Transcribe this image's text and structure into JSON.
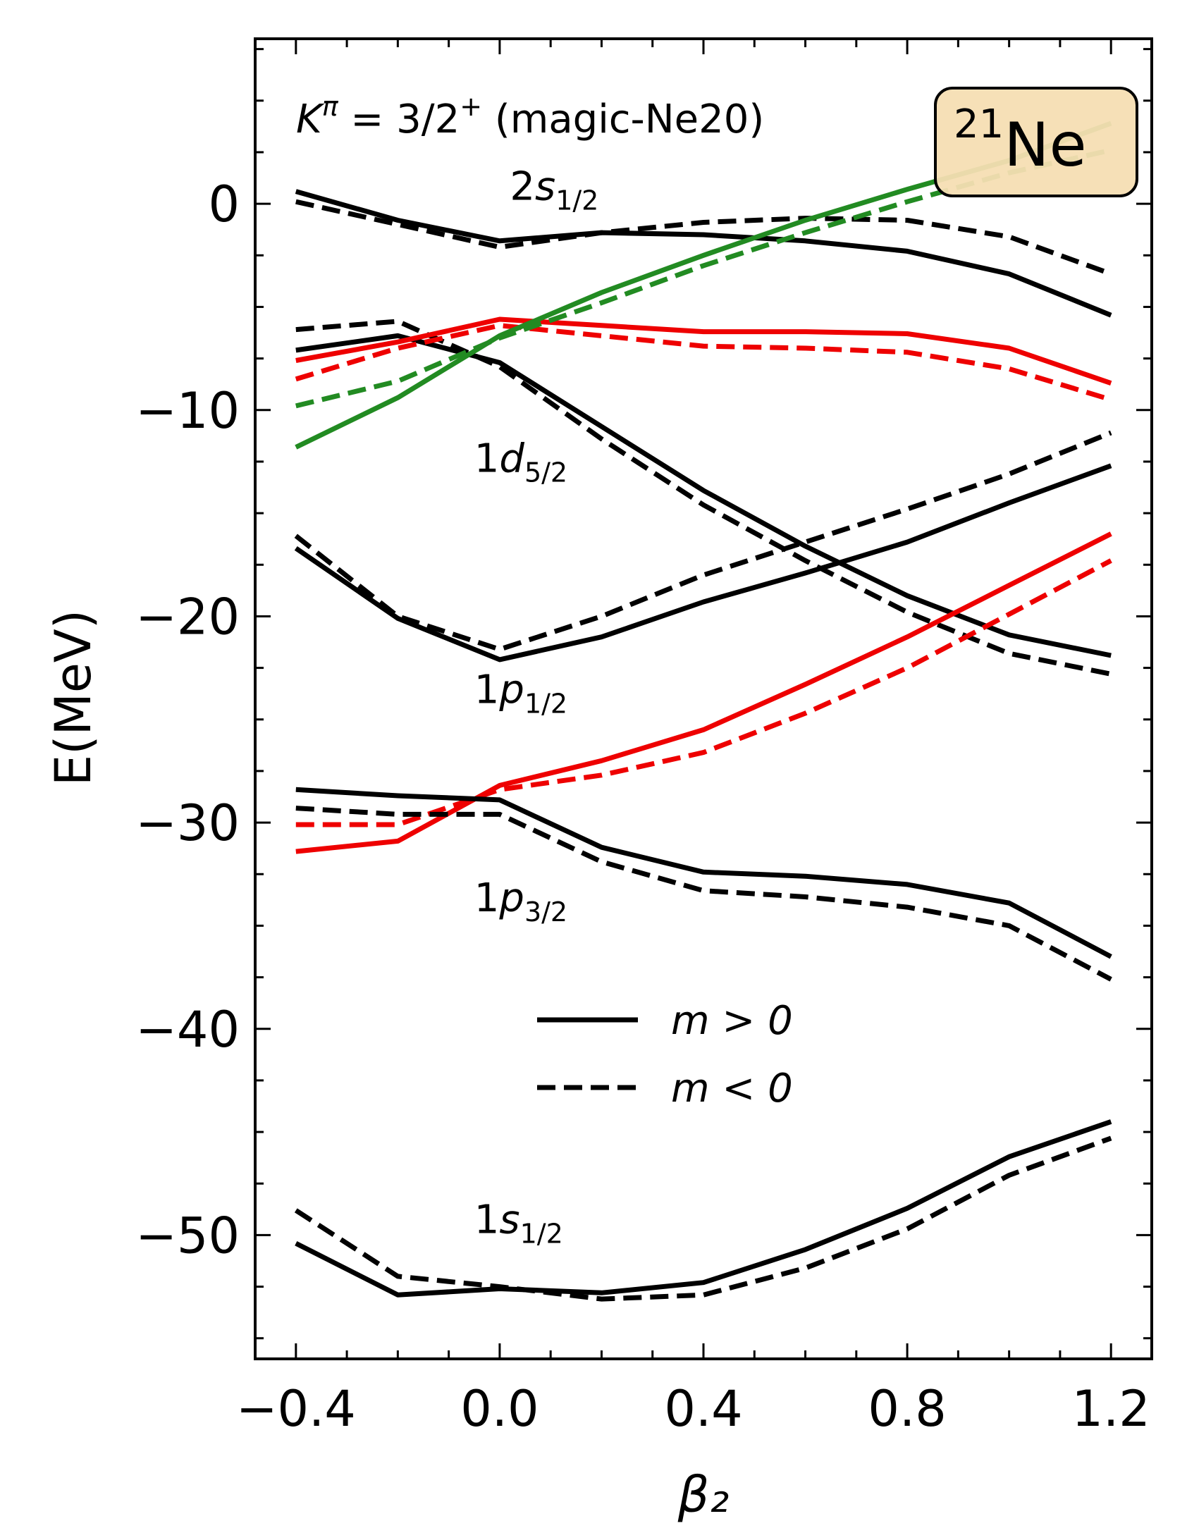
{
  "chart_data": {
    "type": "line",
    "title": "",
    "xlabel": "β₂",
    "ylabel": "E(MeV)",
    "xlim": [
      -0.48,
      1.28
    ],
    "ylim": [
      -56.0,
      8.0
    ],
    "xticks": [
      -0.4,
      0.0,
      0.4,
      0.8,
      1.2
    ],
    "xtick_labels": [
      "−0.4",
      "0.0",
      "0.4",
      "0.8",
      "1.2"
    ],
    "yticks": [
      0,
      -10,
      -20,
      -30,
      -40,
      -50
    ],
    "ytick_labels": [
      "0",
      "−10",
      "−20",
      "−30",
      "−40",
      "−50"
    ],
    "x": [
      -0.4,
      -0.2,
      0.0,
      0.2,
      0.4,
      0.6,
      0.8,
      1.0,
      1.2
    ],
    "k_label": "Kπ = 3/2⁺ (magic-Ne20)",
    "k_label_parts": {
      "k": "K",
      "pi": "π",
      "value": " = 3/2",
      "sup": "+",
      "suffix": " (magic-Ne20)"
    },
    "nucleus_label": {
      "mass": "21",
      "symbol": "Ne",
      "box_color": "#f5deb3"
    },
    "level_labels": [
      {
        "n": "2",
        "l": "s",
        "j": "1/2",
        "at": [
          0.02,
          0.2
        ]
      },
      {
        "n": "1",
        "l": "d",
        "j": "5/2",
        "at": [
          -0.05,
          -13.0
        ]
      },
      {
        "n": "1",
        "l": "p",
        "j": "1/2",
        "at": [
          -0.05,
          -24.2
        ]
      },
      {
        "n": "1",
        "l": "p",
        "j": "3/2",
        "at": [
          -0.05,
          -34.3
        ]
      },
      {
        "n": "1",
        "l": "s",
        "j": "1/2",
        "at": [
          -0.05,
          -49.9
        ]
      }
    ],
    "legend": {
      "position": "lower-center",
      "entries": [
        {
          "label": "m > 0",
          "style": "solid"
        },
        {
          "label": "m < 0",
          "style": "dashed"
        }
      ]
    },
    "colors": {
      "black": "#000000",
      "red": "#ee0000",
      "green": "#228b22"
    },
    "series": [
      {
        "name": "2s1/2 m>0",
        "color": "black",
        "style": "solid",
        "values": [
          0.6,
          -0.8,
          -1.8,
          -1.4,
          -1.5,
          -1.8,
          -2.3,
          -3.4,
          -5.4
        ]
      },
      {
        "name": "2s1/2 m<0",
        "color": "black",
        "style": "dashed",
        "values": [
          0.1,
          -1.0,
          -2.1,
          -1.4,
          -0.9,
          -0.7,
          -0.8,
          -1.6,
          -3.4
        ]
      },
      {
        "name": "1d5/2 black m>0",
        "color": "black",
        "style": "solid",
        "values": [
          -7.1,
          -6.4,
          -7.7,
          -10.8,
          -13.9,
          -16.6,
          -19.0,
          -20.9,
          -21.9
        ]
      },
      {
        "name": "1d5/2 black m<0",
        "color": "black",
        "style": "dashed",
        "values": [
          -6.1,
          -5.7,
          -7.9,
          -11.4,
          -14.6,
          -17.3,
          -19.8,
          -21.8,
          -22.8
        ]
      },
      {
        "name": "1d5/2 red m>0",
        "color": "red",
        "style": "solid",
        "values": [
          -7.6,
          -6.7,
          -5.6,
          -5.9,
          -6.2,
          -6.2,
          -6.3,
          -7.0,
          -8.7
        ]
      },
      {
        "name": "1d5/2 red m<0",
        "color": "red",
        "style": "dashed",
        "values": [
          -8.5,
          -7.0,
          -5.9,
          -6.4,
          -6.9,
          -7.0,
          -7.2,
          -8.0,
          -9.5
        ]
      },
      {
        "name": "1d5/2 green m>0",
        "color": "green",
        "style": "solid",
        "values": [
          -11.8,
          -9.4,
          -6.4,
          -4.3,
          -2.5,
          -0.8,
          0.7,
          2.1,
          3.9
        ]
      },
      {
        "name": "1d5/2 green m<0",
        "color": "green",
        "style": "dashed",
        "values": [
          -9.8,
          -8.6,
          -6.5,
          -4.8,
          -3.0,
          -1.4,
          0.1,
          1.5,
          2.6
        ]
      },
      {
        "name": "1p1/2 m>0",
        "color": "black",
        "style": "solid",
        "values": [
          -16.7,
          -20.1,
          -22.1,
          -21.0,
          -19.3,
          -17.9,
          -16.4,
          -14.5,
          -12.7
        ]
      },
      {
        "name": "1p1/2 m<0",
        "color": "black",
        "style": "dashed",
        "values": [
          -16.1,
          -20.0,
          -21.6,
          -20.0,
          -18.0,
          -16.4,
          -14.8,
          -13.1,
          -11.1
        ]
      },
      {
        "name": "1p3/2 red m>0",
        "color": "red",
        "style": "solid",
        "values": [
          -31.4,
          -30.9,
          -28.2,
          -27.0,
          -25.5,
          -23.3,
          -21.0,
          -18.5,
          -16.0
        ]
      },
      {
        "name": "1p3/2 red m<0",
        "color": "red",
        "style": "dashed",
        "values": [
          -30.1,
          -30.1,
          -28.4,
          -27.7,
          -26.6,
          -24.7,
          -22.5,
          -19.9,
          -17.3
        ]
      },
      {
        "name": "1p3/2 black m>0",
        "color": "black",
        "style": "solid",
        "values": [
          -28.4,
          -28.7,
          -28.9,
          -31.2,
          -32.4,
          -32.6,
          -33.0,
          -33.9,
          -36.5
        ]
      },
      {
        "name": "1p3/2 black m<0",
        "color": "black",
        "style": "dashed",
        "values": [
          -29.3,
          -29.6,
          -29.6,
          -31.9,
          -33.3,
          -33.6,
          -34.1,
          -35.0,
          -37.6
        ]
      },
      {
        "name": "1s1/2 m>0",
        "color": "black",
        "style": "solid",
        "values": [
          -50.4,
          -52.9,
          -52.6,
          -52.8,
          -52.3,
          -50.7,
          -48.7,
          -46.2,
          -44.5
        ]
      },
      {
        "name": "1s1/2 m<0",
        "color": "black",
        "style": "dashed",
        "values": [
          -48.8,
          -52.0,
          -52.5,
          -53.1,
          -52.9,
          -51.6,
          -49.7,
          -47.1,
          -45.3
        ]
      }
    ]
  }
}
